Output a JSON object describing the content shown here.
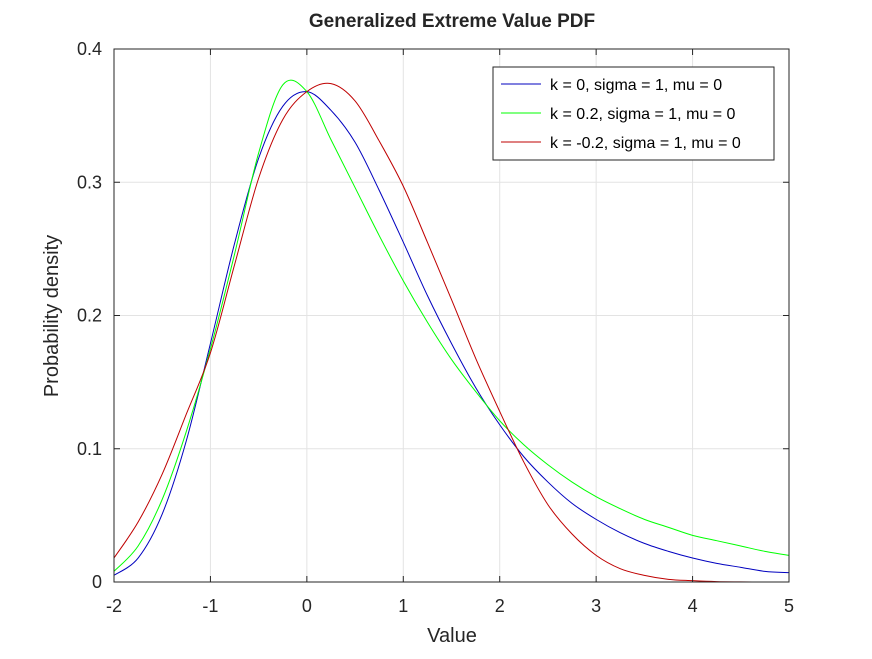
{
  "chart_data": {
    "type": "line",
    "title": "Generalized Extreme Value PDF",
    "xlabel": "Value",
    "ylabel": "Probability density",
    "xlim": [
      -2,
      5
    ],
    "ylim": [
      0,
      0.4
    ],
    "xticks": [
      -2,
      -1,
      0,
      1,
      2,
      3,
      4,
      5
    ],
    "xtick_labels": [
      "-2",
      "-1",
      "0",
      "1",
      "2",
      "3",
      "4",
      "5"
    ],
    "yticks": [
      0,
      0.1,
      0.2,
      0.3,
      0.4
    ],
    "ytick_labels": [
      "0",
      "0.1",
      "0.2",
      "0.3",
      "0.4"
    ],
    "grid": true,
    "legend_position": "top-right",
    "series": [
      {
        "name": "k = 0, sigma = 1, mu = 0",
        "color": "#0000bf",
        "x": [
          -2,
          -1.75,
          -1.5,
          -1.25,
          -1,
          -0.75,
          -0.5,
          -0.25,
          0,
          0.25,
          0.5,
          0.75,
          1,
          1.25,
          1.5,
          1.75,
          2,
          2.25,
          2.5,
          2.75,
          3,
          3.25,
          3.5,
          3.75,
          4,
          4.25,
          4.5,
          4.75,
          5
        ],
        "values": [
          0.005,
          0.018,
          0.051,
          0.106,
          0.179,
          0.254,
          0.318,
          0.357,
          0.368,
          0.354,
          0.33,
          0.294,
          0.255,
          0.215,
          0.179,
          0.146,
          0.118,
          0.094,
          0.075,
          0.059,
          0.047,
          0.037,
          0.029,
          0.023,
          0.018,
          0.014,
          0.011,
          0.008,
          0.007
        ]
      },
      {
        "name": "k = 0.2, sigma = 1, mu = 0",
        "color": "#00ff00",
        "x": [
          -2,
          -1.75,
          -1.5,
          -1.25,
          -1,
          -0.75,
          -0.5,
          -0.25,
          0,
          0.25,
          0.5,
          0.75,
          1,
          1.25,
          1.5,
          1.75,
          2,
          2.25,
          2.5,
          2.75,
          3,
          3.25,
          3.5,
          3.75,
          4,
          4.25,
          4.5,
          4.75,
          5
        ],
        "values": [
          0.008,
          0.027,
          0.062,
          0.113,
          0.175,
          0.246,
          0.322,
          0.373,
          0.368,
          0.332,
          0.296,
          0.26,
          0.226,
          0.195,
          0.167,
          0.143,
          0.121,
          0.103,
          0.088,
          0.075,
          0.064,
          0.055,
          0.047,
          0.041,
          0.035,
          0.031,
          0.027,
          0.023,
          0.02
        ]
      },
      {
        "name": "k = -0.2, sigma = 1, mu = 0",
        "color": "#bf0000",
        "x": [
          -2,
          -1.75,
          -1.5,
          -1.25,
          -1,
          -0.75,
          -0.5,
          -0.25,
          0,
          0.25,
          0.5,
          0.75,
          1,
          1.25,
          1.5,
          1.75,
          2,
          2.25,
          2.5,
          2.75,
          3,
          3.25,
          3.5,
          3.75,
          4,
          4.25,
          4.5,
          4.75,
          5
        ],
        "values": [
          0.018,
          0.045,
          0.081,
          0.126,
          0.172,
          0.238,
          0.303,
          0.347,
          0.368,
          0.374,
          0.361,
          0.331,
          0.297,
          0.255,
          0.212,
          0.168,
          0.128,
          0.09,
          0.058,
          0.036,
          0.02,
          0.01,
          0.005,
          0.002,
          0.001,
          0.0003,
          0.0001,
          0,
          0
        ]
      }
    ]
  }
}
